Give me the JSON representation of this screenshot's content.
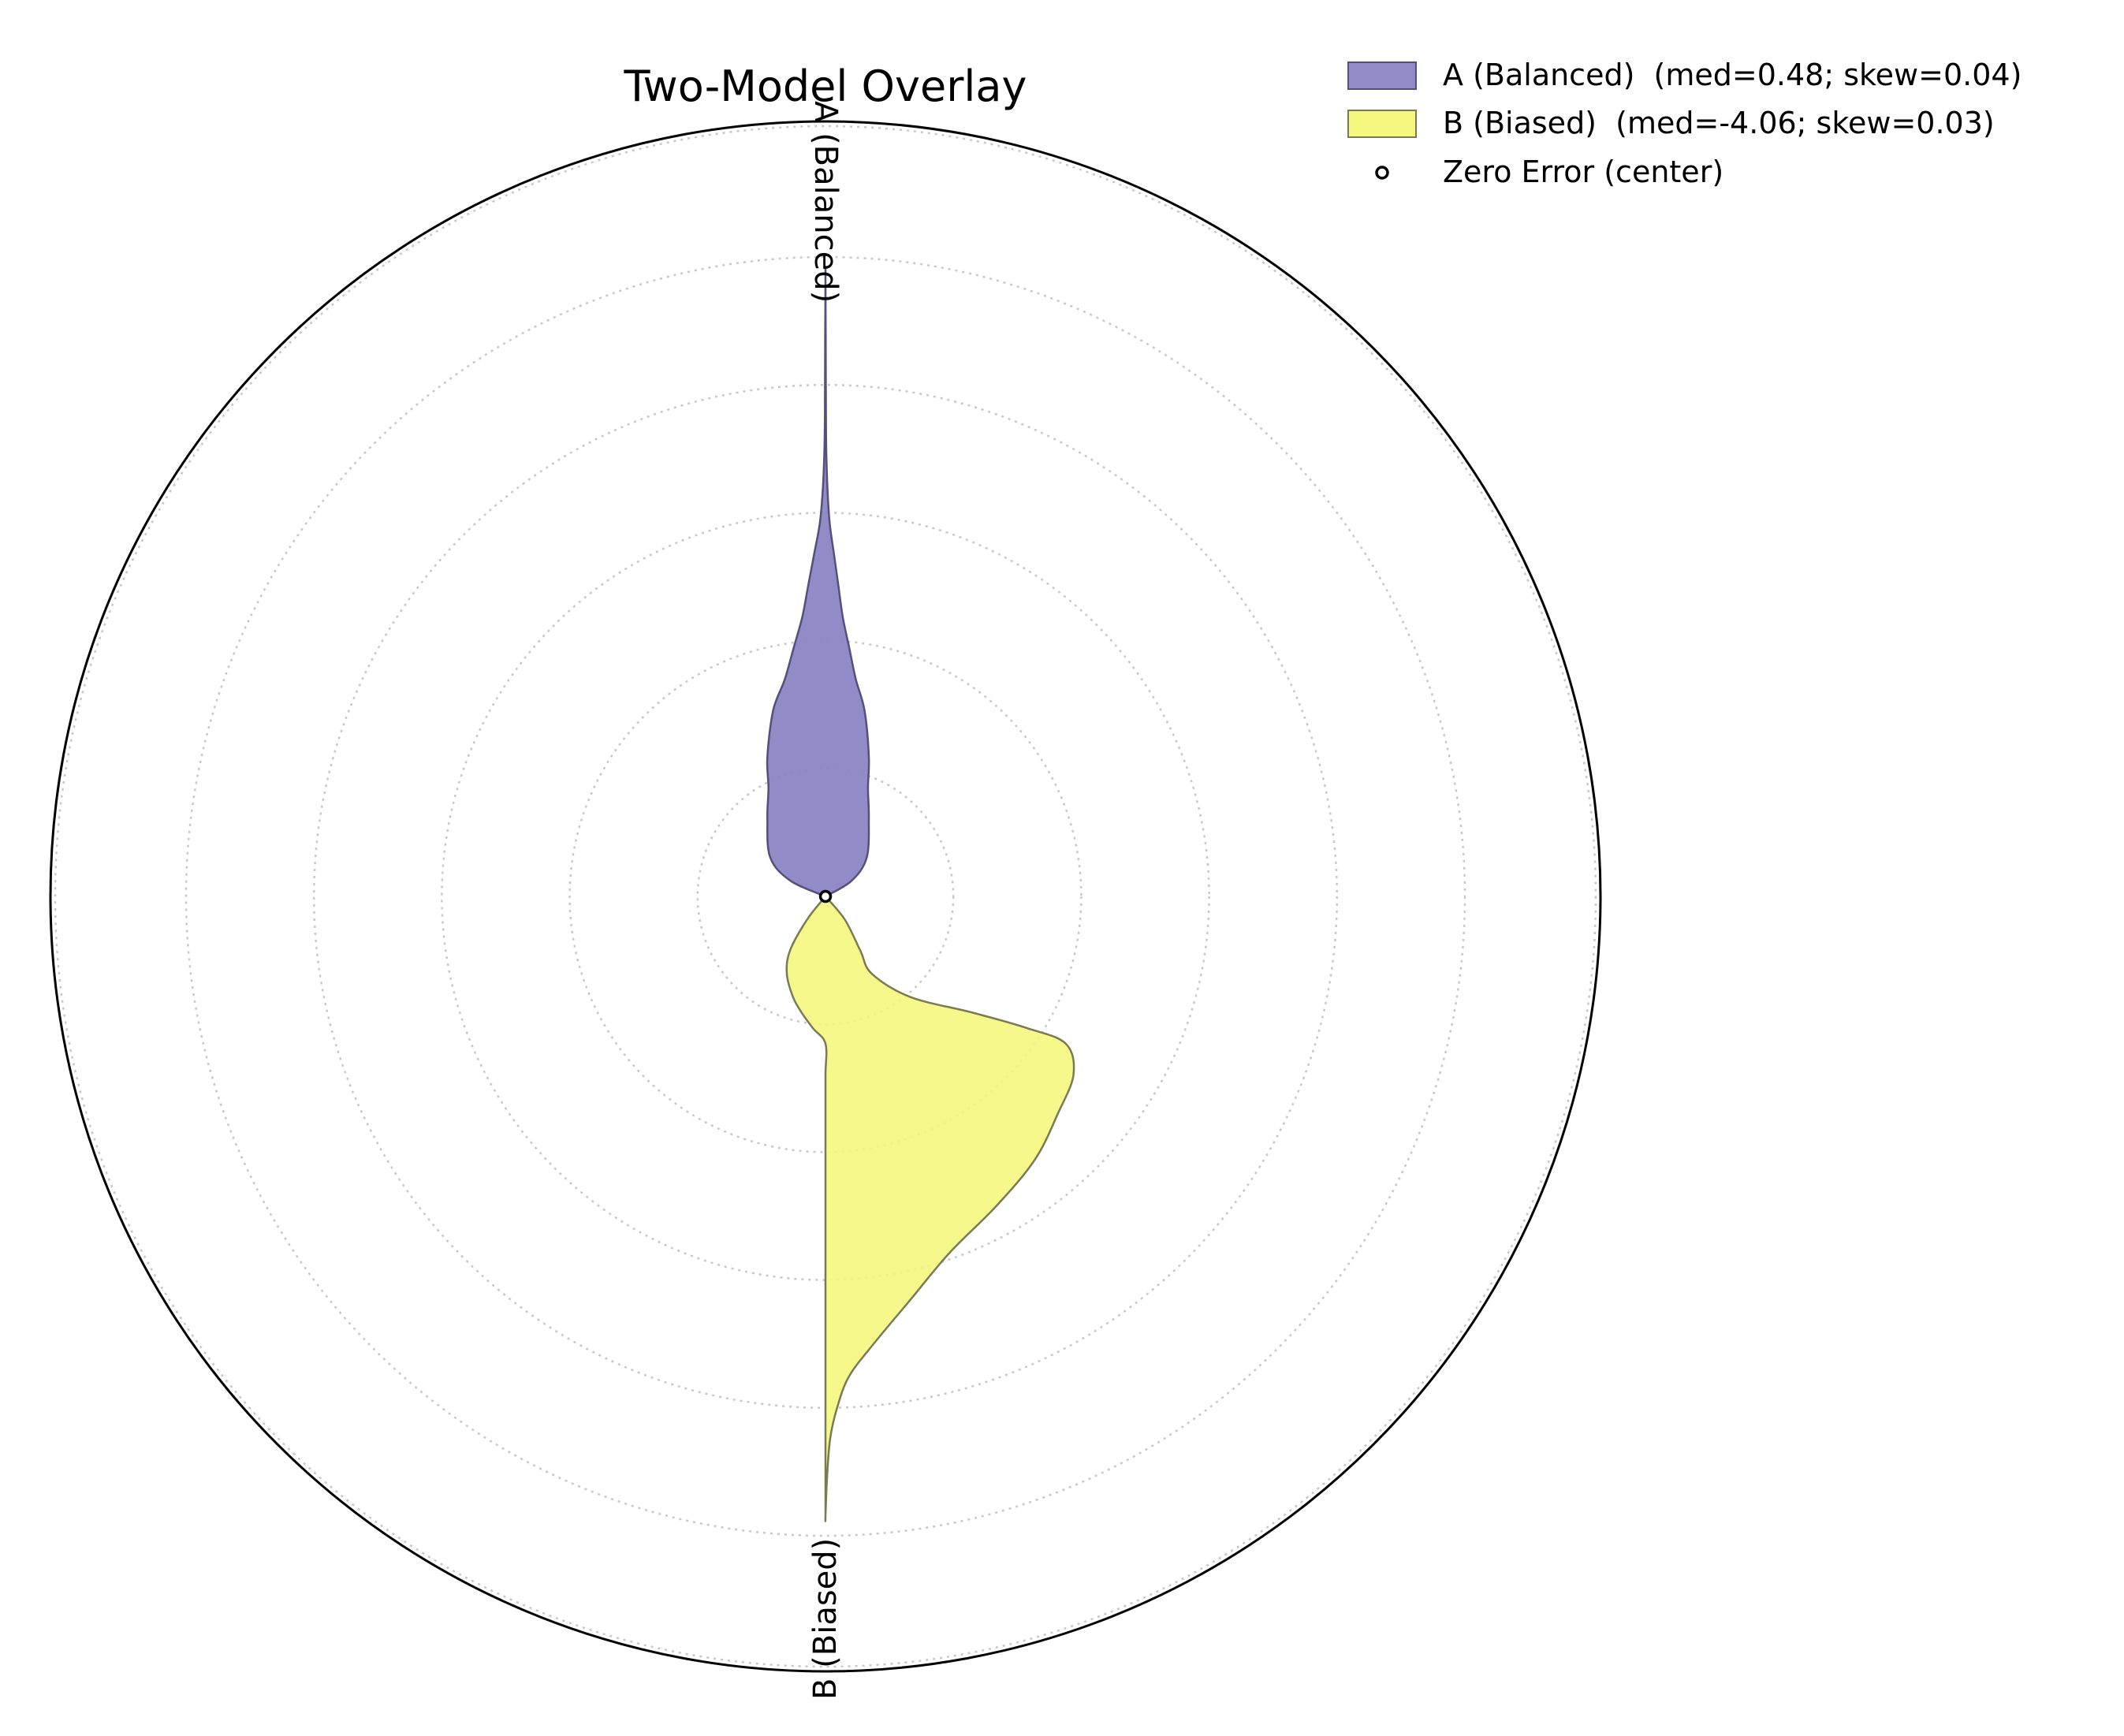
{
  "chart_data": {
    "type": "area",
    "subtype": "polar-violin",
    "title": "Two-Model Overlay",
    "axis_labels": [
      "A (Balanced)",
      "B (Biased)"
    ],
    "grid": true,
    "legend_position": "top-right",
    "series": [
      {
        "name": "A (Balanced)  (med=0.48; skew=0.04)",
        "color": "#8b86c4",
        "edge": "#55507a",
        "direction": "up",
        "profile": [
          [
            0.0,
            0.0
          ],
          [
            0.02,
            0.06
          ],
          [
            0.05,
            0.095
          ],
          [
            0.1,
            0.1
          ],
          [
            0.14,
            0.098
          ],
          [
            0.18,
            0.1
          ],
          [
            0.24,
            0.09
          ],
          [
            0.28,
            0.07
          ],
          [
            0.32,
            0.055
          ],
          [
            0.36,
            0.04
          ],
          [
            0.4,
            0.03
          ],
          [
            0.44,
            0.02
          ],
          [
            0.48,
            0.01
          ],
          [
            0.52,
            0.005
          ],
          [
            0.57,
            0.002
          ],
          [
            0.62,
            0.001
          ],
          [
            0.72,
            0.0005
          ],
          [
            0.8,
            0.0
          ]
        ]
      },
      {
        "name": "B (Biased)  (med=-4.06; skew=0.03)",
        "color": "#f5f77e",
        "edge": "#7a7a55",
        "direction": "down",
        "profile": [
          [
            0.0,
            0.0
          ],
          [
            0.03,
            0.025
          ],
          [
            0.07,
            0.045
          ],
          [
            0.1,
            0.06
          ],
          [
            0.13,
            0.11
          ],
          [
            0.15,
            0.19
          ],
          [
            0.17,
            0.26
          ],
          [
            0.19,
            0.31
          ],
          [
            0.23,
            0.32
          ],
          [
            0.28,
            0.3
          ],
          [
            0.34,
            0.27
          ],
          [
            0.4,
            0.22
          ],
          [
            0.46,
            0.16
          ],
          [
            0.52,
            0.11
          ],
          [
            0.58,
            0.06
          ],
          [
            0.62,
            0.03
          ],
          [
            0.66,
            0.015
          ],
          [
            0.7,
            0.006
          ],
          [
            0.75,
            0.002
          ],
          [
            0.8,
            0.0
          ]
        ]
      },
      {
        "name": "Zero Error (center)",
        "marker": "circle"
      }
    ]
  }
}
